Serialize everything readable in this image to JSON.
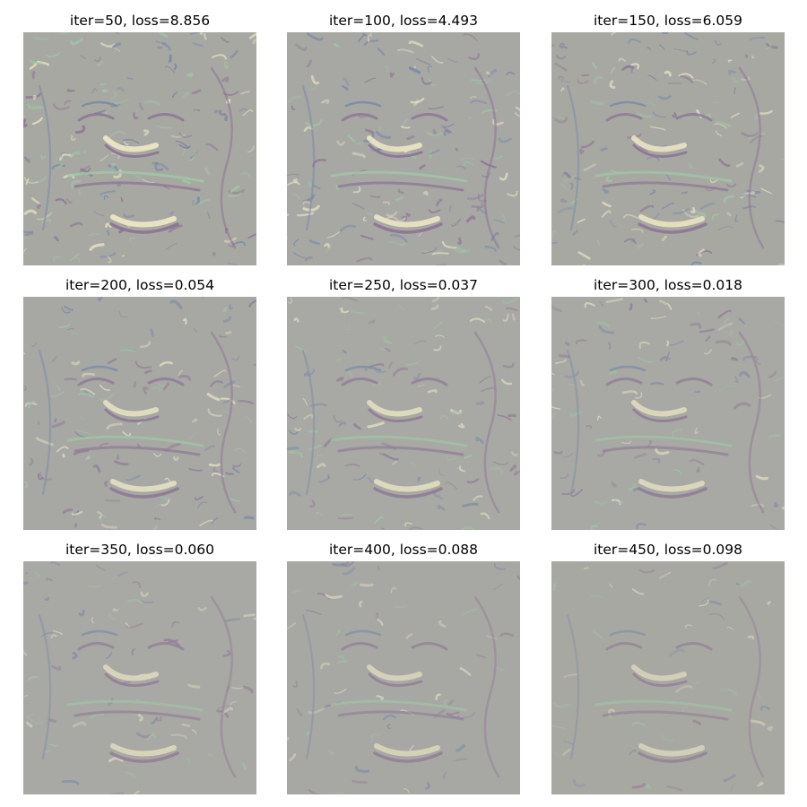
{
  "figure": {
    "panels": [
      {
        "title": "iter=50, loss=8.856",
        "iter": 50,
        "loss": 8.856
      },
      {
        "title": "iter=100, loss=4.493",
        "iter": 100,
        "loss": 4.493
      },
      {
        "title": "iter=150, loss=6.059",
        "iter": 150,
        "loss": 6.059
      },
      {
        "title": "iter=200, loss=0.054",
        "iter": 200,
        "loss": 0.054
      },
      {
        "title": "iter=250, loss=0.037",
        "iter": 250,
        "loss": 0.037
      },
      {
        "title": "iter=300, loss=0.018",
        "iter": 300,
        "loss": 0.018
      },
      {
        "title": "iter=350, loss=0.060",
        "iter": 350,
        "loss": 0.06
      },
      {
        "title": "iter=400, loss=0.088",
        "iter": 400,
        "loss": 0.088
      },
      {
        "title": "iter=450, loss=0.098",
        "iter": 450,
        "loss": 0.098
      }
    ],
    "colors": {
      "background": "#ffffff",
      "image_base": "#a8a8a4",
      "purple": "#8a6f92",
      "blue": "#6f84a8",
      "green": "#9fc9a6",
      "cream": "#f2ecc8"
    }
  }
}
